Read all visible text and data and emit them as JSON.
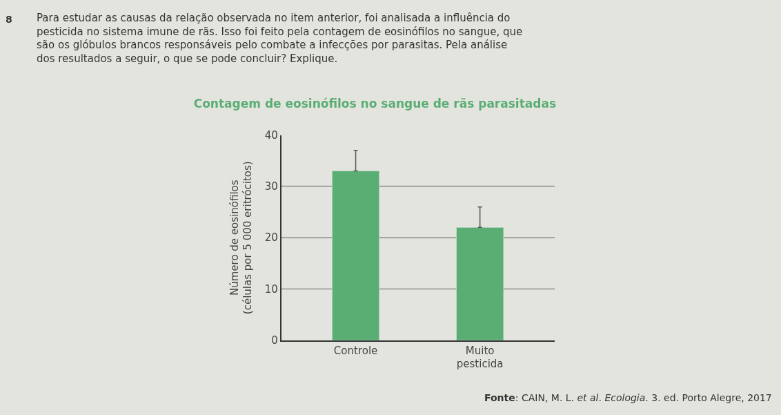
{
  "chart_data": {
    "type": "bar",
    "title": "Contagem de eosinófilos no sangue de rãs parasitadas",
    "ylabel": "Número de eosinófilos\n(células por 5 000 eritrócitos)",
    "categories": [
      "Controle",
      "Muito\npesticida"
    ],
    "values": [
      33,
      22
    ],
    "errors": [
      [
        33,
        37
      ],
      [
        22,
        26
      ]
    ],
    "color": "#5aae74",
    "ylim": [
      0,
      40
    ],
    "yticks": [
      0,
      10,
      20,
      30,
      40
    ],
    "grid": "y",
    "annotations": [
      "8",
      "Para estudar as causas da relação observada no item anterior, foi analisada a influência do\npesticida no sistema imune de rãs. Isso foi feito pela contagem de eosinófilos no sangue, que\nsão os glóbulos brancos responsáveis pelo combate a infecções por parasitas. Pela análise\ndos resultados a seguir, o que se pode concluir? Explique.",
      "**Fonte**: CAIN, M. L. *et al*. *Ecologia*. 3. ed. Porto Alegre, 2017"
    ]
  }
}
